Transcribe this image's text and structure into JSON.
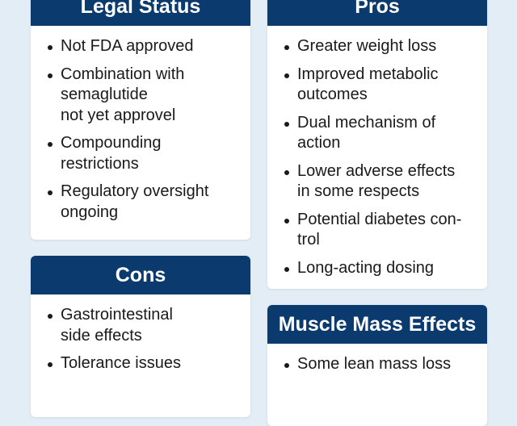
{
  "cards": [
    {
      "title": "Legal Status",
      "items": [
        "Not FDA approved",
        "Combination with\nsemaglutide\nnot yet approvel",
        "Compounding\nrestrictions",
        "Regulatory oversight\nongoing"
      ]
    },
    {
      "title": "Pros",
      "items": [
        "Greater weight loss",
        "Improved metabolic\noutcomes",
        "Dual mechanism of\naction",
        "Lower adverse effects\nin some respects",
        "Potential diabetes con-\ntrol",
        "Long-acting dosing"
      ]
    },
    {
      "title": "Cons",
      "items": [
        "Gastrointestinal\nside effects",
        "Tolerance issues"
      ]
    },
    {
      "title": "Muscle Mass Effects",
      "items": [
        "Some lean mass loss"
      ]
    }
  ],
  "colors": {
    "header": "#0b3a6e",
    "background": "#e2edf5"
  }
}
